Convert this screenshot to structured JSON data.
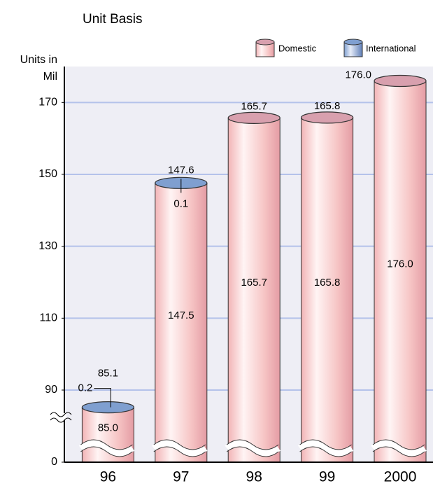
{
  "chart_data": {
    "type": "bar",
    "title": "Unit Basis",
    "y_label": "Units in Mil",
    "categories": [
      "96",
      "97",
      "98",
      "99",
      "2000"
    ],
    "series": [
      {
        "name": "Domestic",
        "color": "#f4bcbc",
        "values": [
          85.0,
          147.5,
          165.7,
          165.8,
          176.0
        ],
        "value_labels": [
          "85.0",
          "147.5",
          "165.7",
          "165.8",
          "176.0"
        ]
      },
      {
        "name": "International",
        "color": "#7f9fd0",
        "values": [
          0.2,
          0.1,
          null,
          null,
          null
        ]
      }
    ],
    "totals": [
      85.1,
      147.6,
      165.7,
      165.8,
      176.0
    ],
    "totals_labels": [
      "85.1",
      "147.6",
      "165.7",
      "165.8",
      "176.0"
    ],
    "ylim": [
      0,
      180
    ],
    "yticks": [
      0,
      90,
      110,
      130,
      150,
      170
    ],
    "axis_break": true,
    "grid": true,
    "legend": "top-right",
    "stacked": true
  }
}
